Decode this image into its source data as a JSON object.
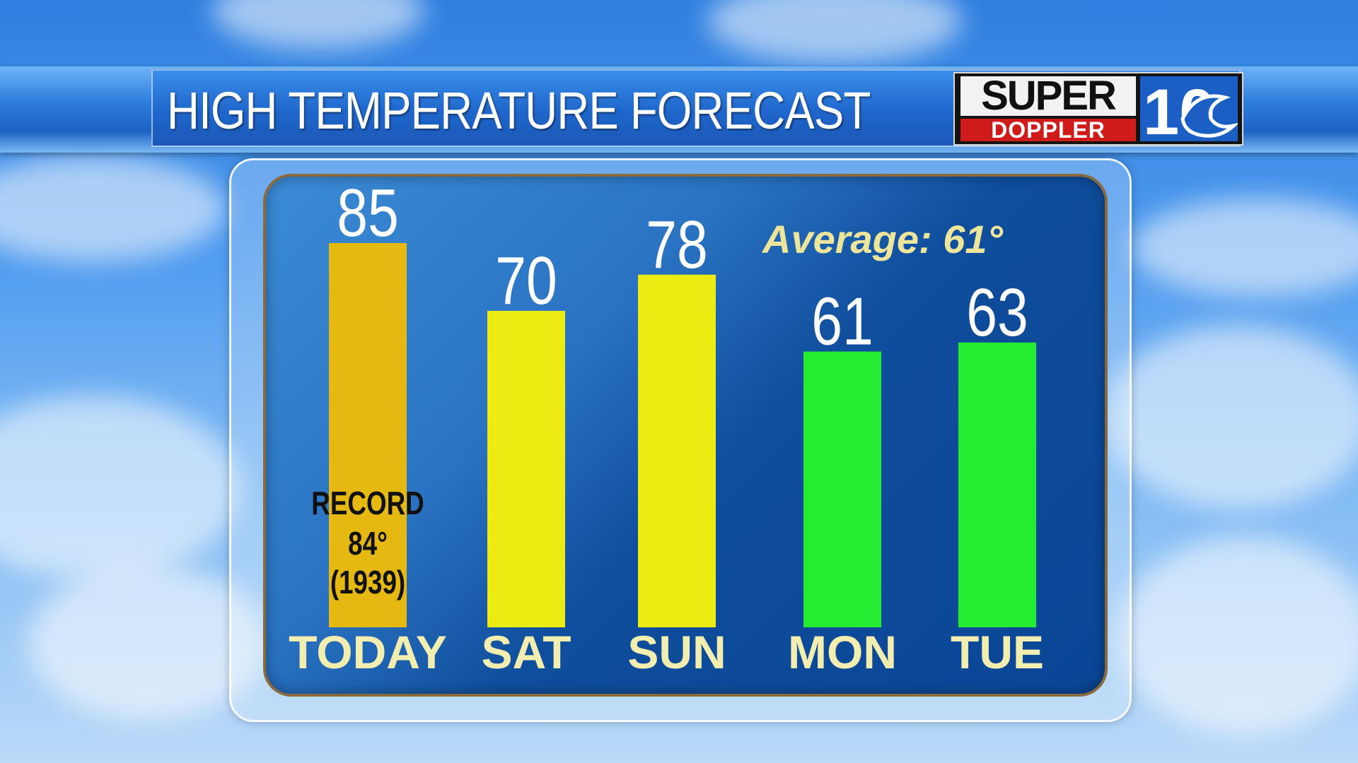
{
  "header": {
    "title": "HIGH TEMPERATURE FORECAST"
  },
  "logo": {
    "line1": "SUPER",
    "line2": "DOPPLER",
    "number": "10"
  },
  "chart_data": {
    "type": "bar",
    "title": "HIGH TEMPERATURE FORECAST",
    "categories": [
      "TODAY",
      "SAT",
      "SUN",
      "MON",
      "TUE"
    ],
    "values": [
      85,
      70,
      78,
      61,
      63
    ],
    "value_labels": [
      "85",
      "70",
      "78",
      "61",
      "63"
    ],
    "bar_colors": [
      "#e6b812",
      "#ecec12",
      "#ecec12",
      "#24ec30",
      "#24ec30"
    ],
    "average_label": "Average: 61°",
    "annotation": {
      "category": "TODAY",
      "lines": [
        "RECORD",
        "84°",
        "(1939)"
      ]
    },
    "ylim": [
      0,
      90
    ]
  },
  "colors": {
    "category_text": "#f2eeb0",
    "average_text": "#ede59a",
    "panel_blue": "#0f4e9c"
  }
}
